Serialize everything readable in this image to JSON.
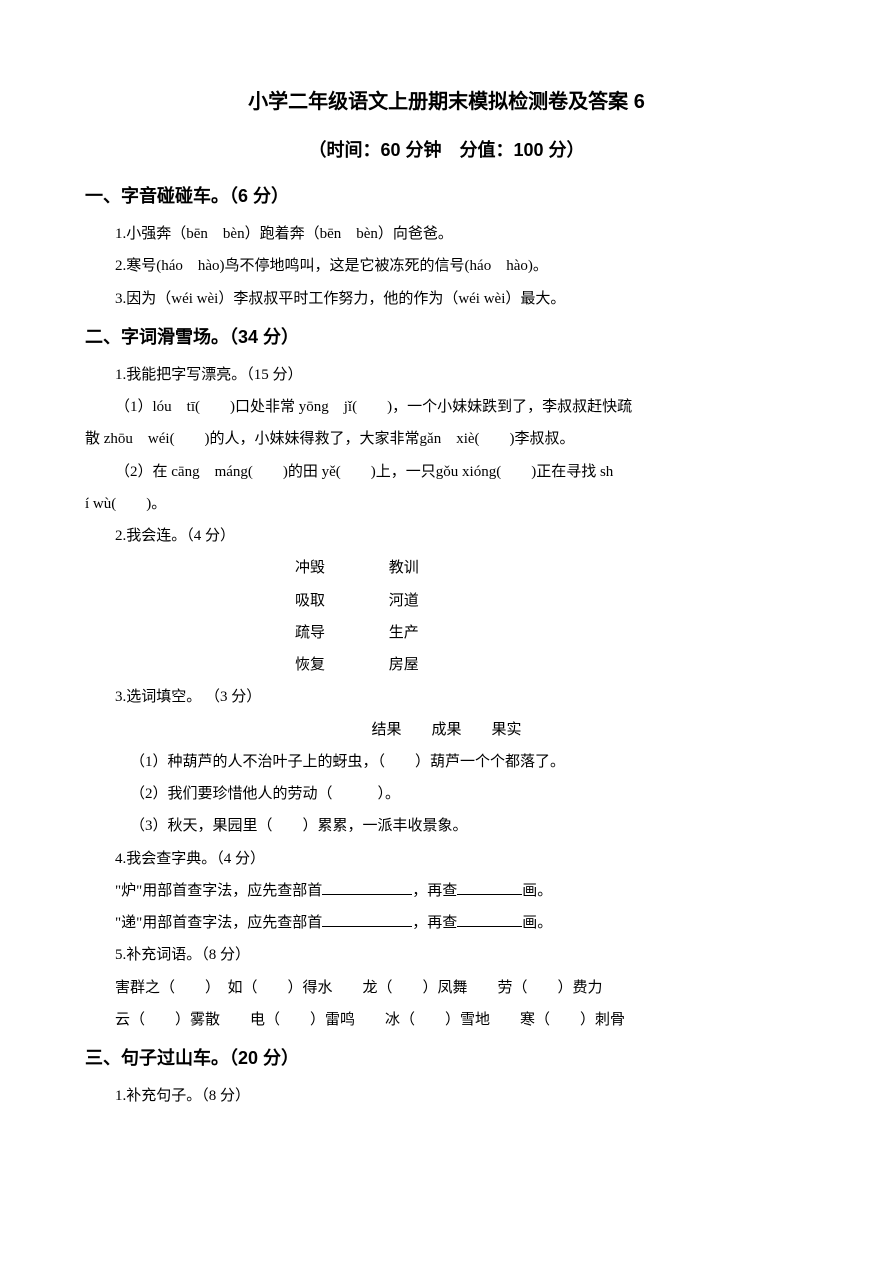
{
  "document": {
    "title": "小学二年级语文上册期末模拟检测卷及答案 6",
    "subtitle": "（时间：60 分钟　分值：100 分）",
    "background_color": "#ffffff",
    "text_color": "#000000",
    "title_fontsize": 20,
    "body_fontsize": 15,
    "heading_fontsize": 18
  },
  "section1": {
    "heading": "一、字音碰碰车。（6 分）",
    "q1": "1.小强奔（bēn　bèn）跑着奔（bēn　bèn）向爸爸。",
    "q2": "2.寒号(háo　hào)鸟不停地鸣叫，这是它被冻死的信号(háo　hào)。",
    "q3": "3.因为（wéi wèi）李叔叔平时工作努力，他的作为（wéi wèi）最大。"
  },
  "section2": {
    "heading": "二、字词滑雪场。（34 分）",
    "q1": {
      "title": "1.我能把字写漂亮。（15 分）",
      "line1": "（1）lóu　tī(　　)口处非常 yōng　jǐ(　　)，一个小妹妹跌到了，李叔叔赶快疏",
      "line2": "散 zhōu　wéi(　　)的人，小妹妹得救了，大家非常gǎn　xiè(　　)李叔叔。",
      "line3": "（2）在 cāng　máng(　　)的田 yě(　　)上，一只gǒu xióng(　　)正在寻找 sh",
      "line4": "í wù(　　)。"
    },
    "q2": {
      "title": "2.我会连。（4 分）",
      "pairs": [
        {
          "left": "冲毁",
          "right": "教训"
        },
        {
          "left": "吸取",
          "right": "河道"
        },
        {
          "left": "疏导",
          "right": "生产"
        },
        {
          "left": "恢复",
          "right": "房屋"
        }
      ]
    },
    "q3": {
      "title": "3.选词填空。 （3 分）",
      "options": "结果　　成果　　果实",
      "s1": "（1）种葫芦的人不治叶子上的蚜虫，（　　）葫芦一个个都落了。",
      "s2": "（2）我们要珍惜他人的劳动（　　　）。",
      "s3": "（3）秋天，果园里（　　）累累，一派丰收景象。"
    },
    "q4": {
      "title": "4.我会查字典。（4 分）",
      "line1_prefix": "\"炉\"用部首查字法，应先查部首",
      "line1_mid": "，再查",
      "line1_suffix": "画。",
      "line2_prefix": "\"递\"用部首查字法，应先查部首",
      "line2_mid": "，再查",
      "line2_suffix": "画。"
    },
    "q5": {
      "title": "5.补充词语。（8 分）",
      "line1": "害群之（　　）　如（　　）得水　　龙（　　）凤舞　　劳（　　）费力",
      "line2": "云（　　）雾散　　电（　　）雷鸣　　冰（　　）雪地　　寒（　　）刺骨"
    }
  },
  "section3": {
    "heading": "三、句子过山车。（20 分）",
    "q1": "1.补充句子。（8 分）"
  }
}
